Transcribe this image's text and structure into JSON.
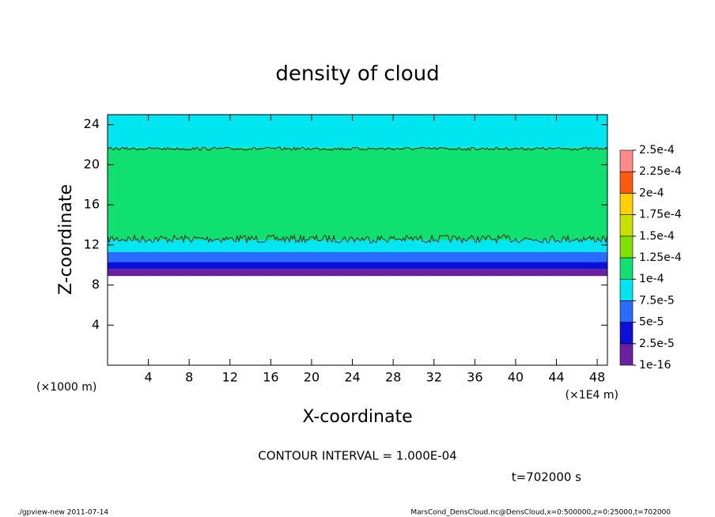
{
  "chart_data": {
    "type": "contour",
    "title": "density of cloud",
    "xlabel": "X-coordinate",
    "ylabel": "Z-coordinate",
    "x_unit": "(×1E4 m)",
    "y_unit": "(×1000 m)",
    "xlim": [
      0,
      49
    ],
    "ylim": [
      0,
      25
    ],
    "xticks": [
      4,
      8,
      12,
      16,
      20,
      24,
      28,
      32,
      36,
      40,
      44,
      48
    ],
    "yticks": [
      4,
      8,
      12,
      16,
      20,
      24
    ],
    "levels": [
      {
        "value": 1e-16,
        "label": "1e-16"
      },
      {
        "value": 2.5e-05,
        "label": "2.5e-5"
      },
      {
        "value": 5e-05,
        "label": "5e-5"
      },
      {
        "value": 7.5e-05,
        "label": "7.5e-5"
      },
      {
        "value": 0.0001,
        "label": "1e-4"
      },
      {
        "value": 0.000125,
        "label": "1.25e-4"
      },
      {
        "value": 0.00015,
        "label": "1.5e-4"
      },
      {
        "value": 0.000175,
        "label": "1.75e-4"
      },
      {
        "value": 0.0002,
        "label": "2e-4"
      },
      {
        "value": 0.000225,
        "label": "2.25e-4"
      },
      {
        "value": 0.00025,
        "label": "2.5e-4"
      }
    ],
    "colors": [
      "#6a1fa0",
      "#0a10d8",
      "#2a6cff",
      "#00e6f0",
      "#10e070",
      "#80e000",
      "#c8e000",
      "#ffd000",
      "#ff5a10",
      "#ff8a8a"
    ],
    "layers": [
      {
        "z": [
          8.9,
          9.6
        ],
        "value": 1e-05
      },
      {
        "z": [
          9.6,
          10.3
        ],
        "value": 3e-05
      },
      {
        "z": [
          10.3,
          11.3
        ],
        "value": 6e-05
      },
      {
        "z": [
          11.3,
          12.5
        ],
        "value": 8.5e-05
      },
      {
        "z": [
          12.5,
          21.7
        ],
        "value": 0.00011
      },
      {
        "z": [
          21.7,
          25
        ],
        "value": 8.5e-05
      }
    ],
    "contours": [
      {
        "level": 0.0001,
        "z": [
          12.6,
          21.6
        ]
      }
    ],
    "annotations": [
      "CONTOUR INTERVAL = 1.000E-04",
      "t=702000 s"
    ],
    "footer_left": "./gpview-new  2011-07-14",
    "footer_right": "MarsCond_DensCloud.nc@DensCloud,x=0:500000,z=0:25000,t=702000"
  }
}
